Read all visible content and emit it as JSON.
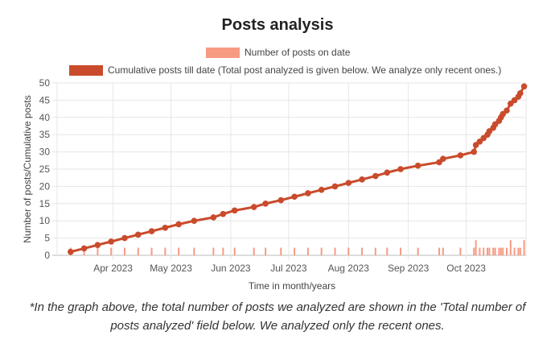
{
  "title": "Posts analysis",
  "note": "*In the graph above, the total number of posts we analyzed are shown in the 'Total number of posts analyzed' field below. We analyzed only the recent ones.",
  "colors": {
    "bar": "#f79a82",
    "line": "#c94b2b",
    "grid": "#e6e6e6",
    "axis": "#555555"
  },
  "chart_data": {
    "type": "bar+line",
    "xlabel": "Time in month/years",
    "ylabel": "Number of posts/Cumulative posts",
    "ylim": [
      0,
      50
    ],
    "yticks": [
      0,
      5,
      10,
      15,
      20,
      25,
      30,
      35,
      40,
      45,
      50
    ],
    "xlim": [
      "2023-03-03",
      "2023-11-01"
    ],
    "xticks": [
      {
        "date": "2023-04-01",
        "label": "Apr 2023"
      },
      {
        "date": "2023-05-01",
        "label": "May 2023"
      },
      {
        "date": "2023-06-01",
        "label": "Jun 2023"
      },
      {
        "date": "2023-07-01",
        "label": "Jul 2023"
      },
      {
        "date": "2023-08-01",
        "label": "Aug 2023"
      },
      {
        "date": "2023-09-01",
        "label": "Sep 2023"
      },
      {
        "date": "2023-10-01",
        "label": "Oct 2023"
      }
    ],
    "grid": true,
    "legend_position": "top",
    "series": [
      {
        "name": "Number of posts on date",
        "type": "bar",
        "points": [
          [
            "2023-03-10",
            1
          ],
          [
            "2023-03-17",
            1
          ],
          [
            "2023-03-24",
            1
          ],
          [
            "2023-03-31",
            1
          ],
          [
            "2023-04-07",
            1
          ],
          [
            "2023-04-14",
            1
          ],
          [
            "2023-04-21",
            1
          ],
          [
            "2023-04-28",
            1
          ],
          [
            "2023-05-05",
            1
          ],
          [
            "2023-05-13",
            1
          ],
          [
            "2023-05-23",
            1
          ],
          [
            "2023-05-28",
            1
          ],
          [
            "2023-06-03",
            1
          ],
          [
            "2023-06-13",
            1
          ],
          [
            "2023-06-19",
            1
          ],
          [
            "2023-06-27",
            1
          ],
          [
            "2023-07-04",
            1
          ],
          [
            "2023-07-11",
            1
          ],
          [
            "2023-07-18",
            1
          ],
          [
            "2023-07-25",
            1
          ],
          [
            "2023-08-01",
            1
          ],
          [
            "2023-08-08",
            1
          ],
          [
            "2023-08-15",
            1
          ],
          [
            "2023-08-21",
            1
          ],
          [
            "2023-08-28",
            1
          ],
          [
            "2023-09-06",
            1
          ],
          [
            "2023-09-17",
            1
          ],
          [
            "2023-09-19",
            1
          ],
          [
            "2023-09-28",
            1
          ],
          [
            "2023-10-05",
            1
          ],
          [
            "2023-10-06",
            2
          ],
          [
            "2023-10-08",
            1
          ],
          [
            "2023-10-10",
            1
          ],
          [
            "2023-10-12",
            1
          ],
          [
            "2023-10-13",
            1
          ],
          [
            "2023-10-15",
            1
          ],
          [
            "2023-10-16",
            1
          ],
          [
            "2023-10-18",
            1
          ],
          [
            "2023-10-19",
            1
          ],
          [
            "2023-10-20",
            1
          ],
          [
            "2023-10-22",
            1
          ],
          [
            "2023-10-24",
            2
          ],
          [
            "2023-10-26",
            1
          ],
          [
            "2023-10-28",
            1
          ],
          [
            "2023-10-29",
            1
          ],
          [
            "2023-10-31",
            2
          ]
        ]
      },
      {
        "name": "Cumulative posts till date (Total post analyzed is given below. We analyze only recent ones.)",
        "type": "line",
        "points": [
          [
            "2023-03-10",
            1
          ],
          [
            "2023-03-17",
            2
          ],
          [
            "2023-03-24",
            3
          ],
          [
            "2023-03-31",
            4
          ],
          [
            "2023-04-07",
            5
          ],
          [
            "2023-04-14",
            6
          ],
          [
            "2023-04-21",
            7
          ],
          [
            "2023-04-28",
            8
          ],
          [
            "2023-05-05",
            9
          ],
          [
            "2023-05-13",
            10
          ],
          [
            "2023-05-23",
            11
          ],
          [
            "2023-05-28",
            12
          ],
          [
            "2023-06-03",
            13
          ],
          [
            "2023-06-13",
            14
          ],
          [
            "2023-06-19",
            15
          ],
          [
            "2023-06-27",
            16
          ],
          [
            "2023-07-04",
            17
          ],
          [
            "2023-07-11",
            18
          ],
          [
            "2023-07-18",
            19
          ],
          [
            "2023-07-25",
            20
          ],
          [
            "2023-08-01",
            21
          ],
          [
            "2023-08-08",
            22
          ],
          [
            "2023-08-15",
            23
          ],
          [
            "2023-08-21",
            24
          ],
          [
            "2023-08-28",
            25
          ],
          [
            "2023-09-06",
            26
          ],
          [
            "2023-09-17",
            27
          ],
          [
            "2023-09-19",
            28
          ],
          [
            "2023-09-28",
            29
          ],
          [
            "2023-10-05",
            30
          ],
          [
            "2023-10-06",
            32
          ],
          [
            "2023-10-08",
            33
          ],
          [
            "2023-10-10",
            34
          ],
          [
            "2023-10-12",
            35
          ],
          [
            "2023-10-13",
            36
          ],
          [
            "2023-10-15",
            37
          ],
          [
            "2023-10-16",
            38
          ],
          [
            "2023-10-18",
            39
          ],
          [
            "2023-10-19",
            40
          ],
          [
            "2023-10-20",
            41
          ],
          [
            "2023-10-22",
            42
          ],
          [
            "2023-10-24",
            44
          ],
          [
            "2023-10-26",
            45
          ],
          [
            "2023-10-28",
            46
          ],
          [
            "2023-10-29",
            47
          ],
          [
            "2023-10-31",
            49
          ]
        ]
      }
    ]
  }
}
